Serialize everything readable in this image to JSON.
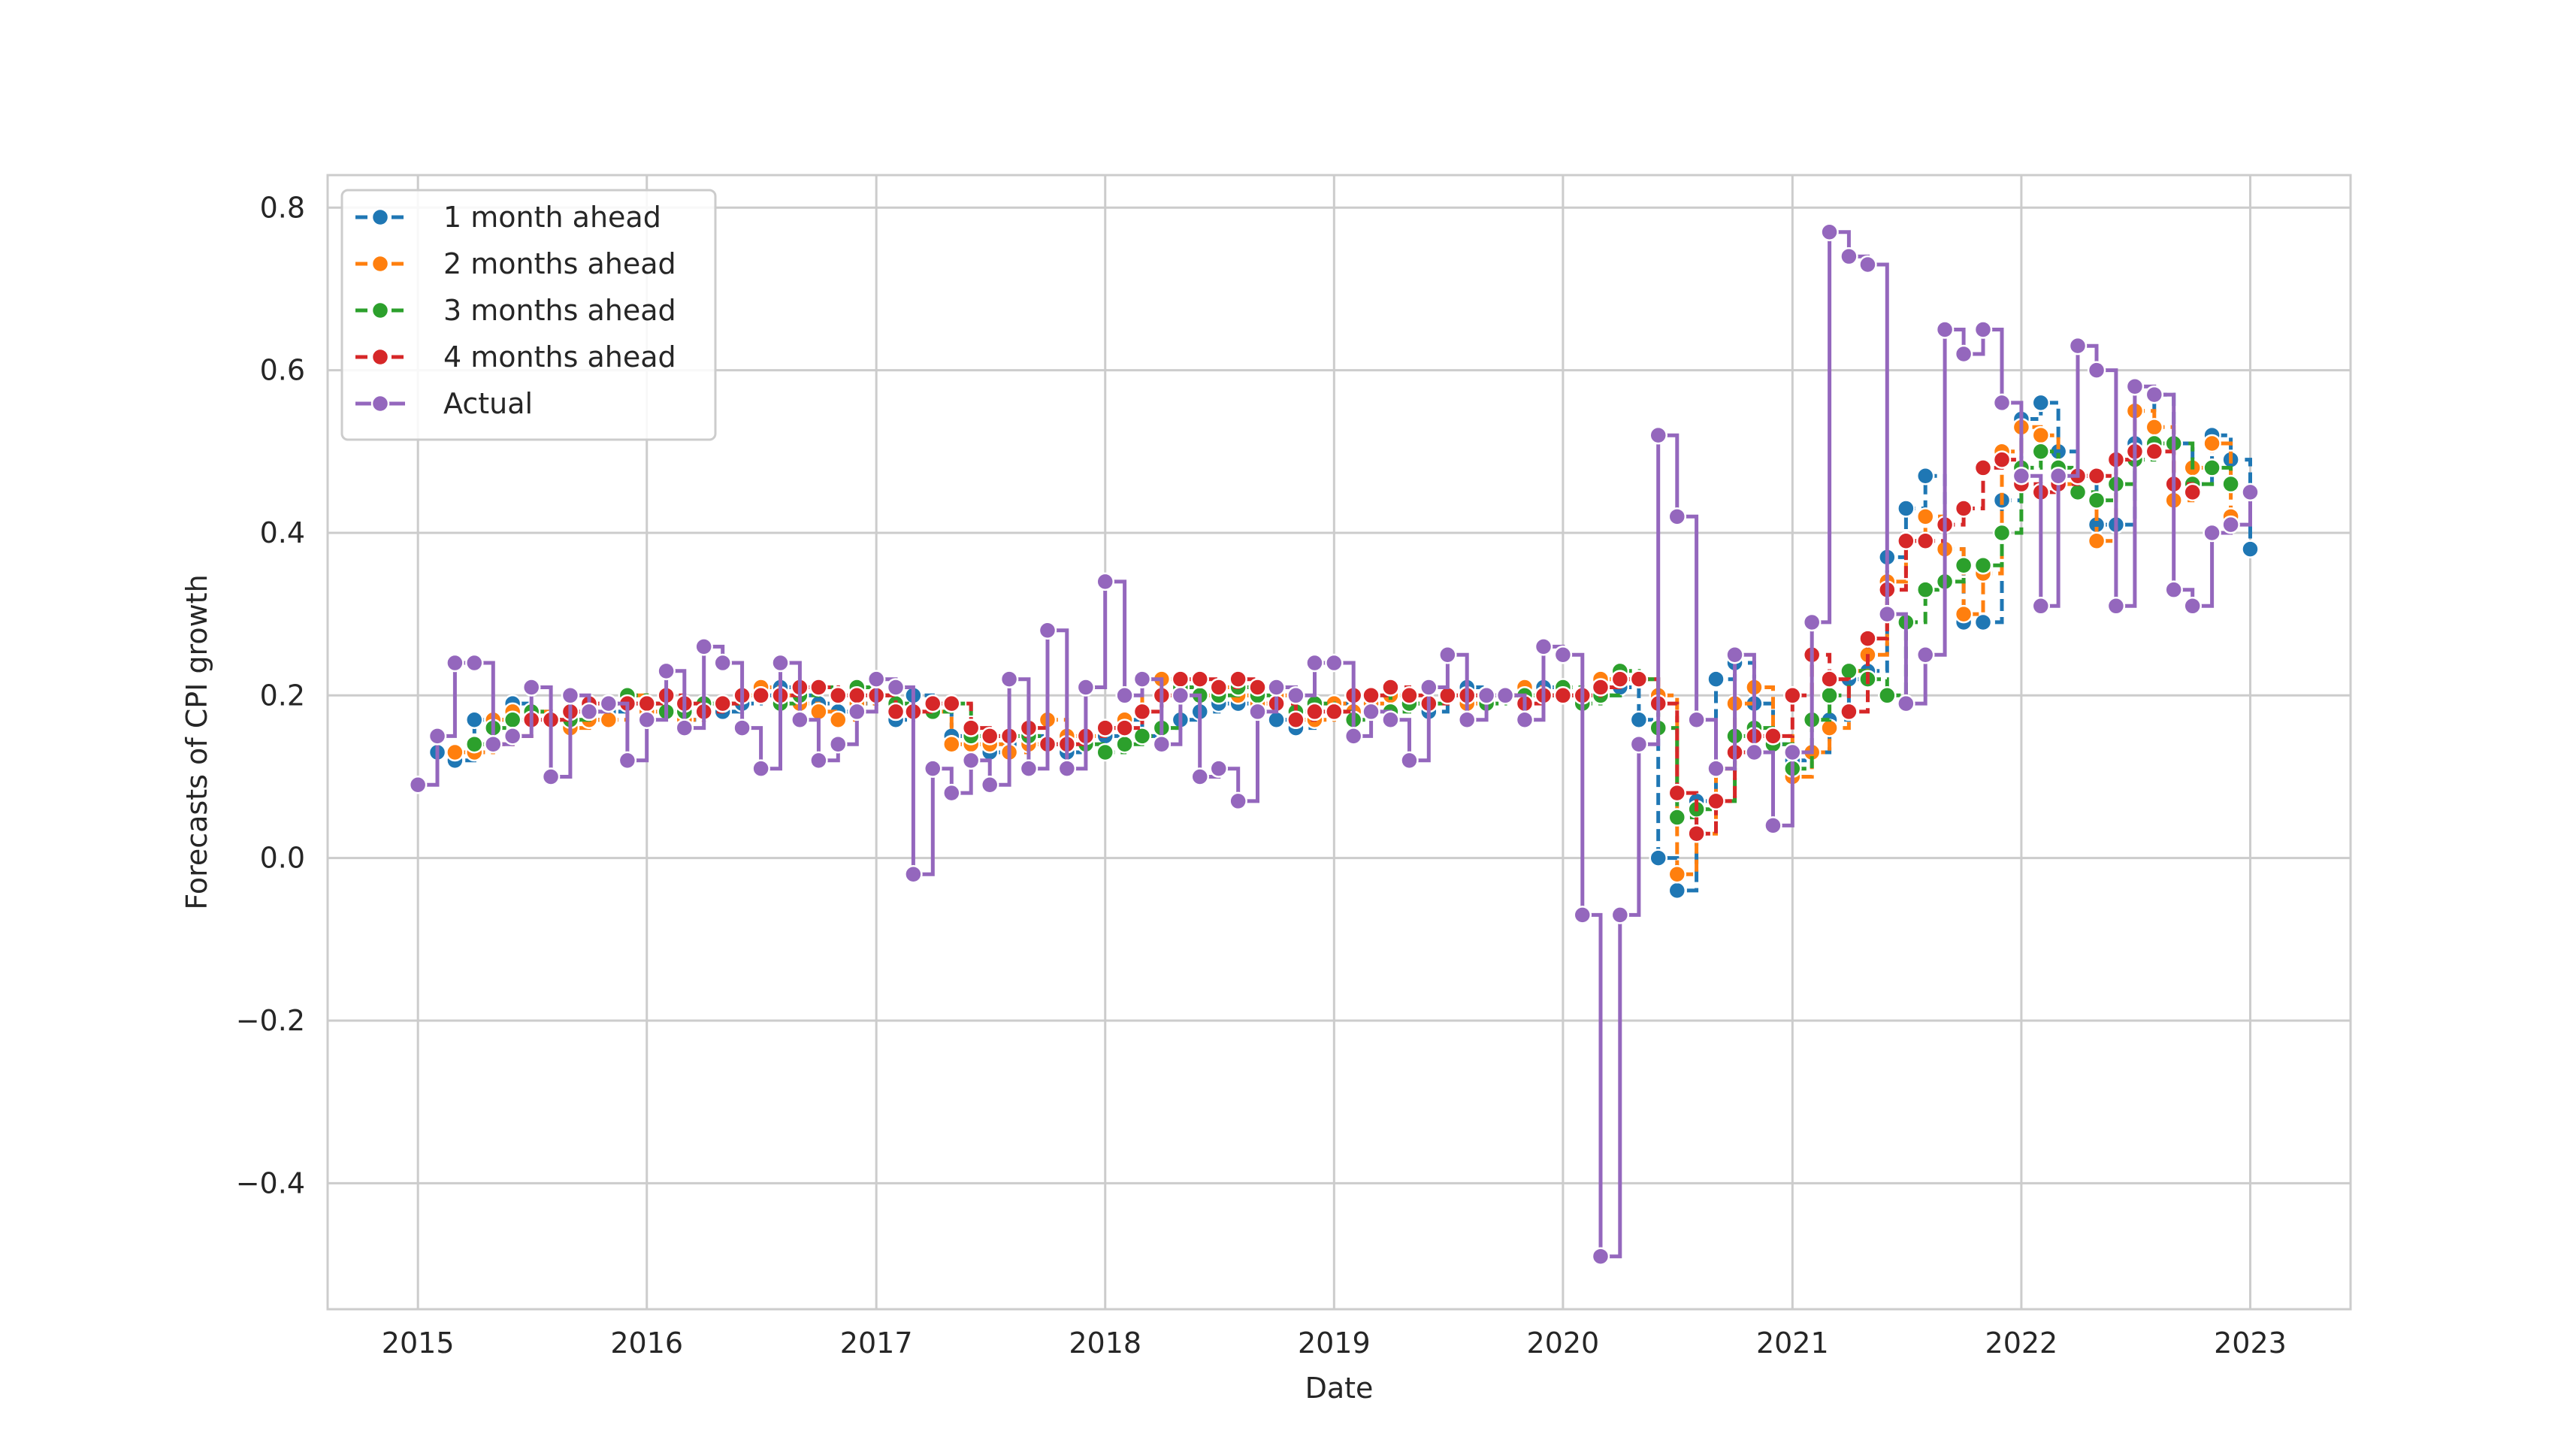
{
  "chart_data": {
    "type": "line",
    "step": "post",
    "markers": true,
    "xlabel": "Date",
    "ylabel": "Forecasts of CPI growth",
    "xlim": [
      "2014-08-10",
      "2023-06-10"
    ],
    "ylim": [
      -0.555,
      0.84
    ],
    "xticks": [
      2015,
      2016,
      2017,
      2018,
      2019,
      2020,
      2021,
      2022,
      2023
    ],
    "xtick_labels": [
      "2015",
      "2016",
      "2017",
      "2018",
      "2019",
      "2020",
      "2021",
      "2022",
      "2023"
    ],
    "yticks": [
      -0.4,
      -0.2,
      0.0,
      0.2,
      0.4,
      0.6,
      0.8
    ],
    "ytick_labels": [
      "−0.4",
      "−0.2",
      "0.0",
      "0.2",
      "0.4",
      "0.6",
      "0.8"
    ],
    "grid": true,
    "legend_position": "top-left",
    "x": [
      "2015-01",
      "2015-02",
      "2015-03",
      "2015-04",
      "2015-05",
      "2015-06",
      "2015-07",
      "2015-08",
      "2015-09",
      "2015-10",
      "2015-11",
      "2015-12",
      "2016-01",
      "2016-02",
      "2016-03",
      "2016-04",
      "2016-05",
      "2016-06",
      "2016-07",
      "2016-08",
      "2016-09",
      "2016-10",
      "2016-11",
      "2016-12",
      "2017-01",
      "2017-02",
      "2017-03",
      "2017-04",
      "2017-05",
      "2017-06",
      "2017-07",
      "2017-08",
      "2017-09",
      "2017-10",
      "2017-11",
      "2017-12",
      "2018-01",
      "2018-02",
      "2018-03",
      "2018-04",
      "2018-05",
      "2018-06",
      "2018-07",
      "2018-08",
      "2018-09",
      "2018-10",
      "2018-11",
      "2018-12",
      "2019-01",
      "2019-02",
      "2019-03",
      "2019-04",
      "2019-05",
      "2019-06",
      "2019-07",
      "2019-08",
      "2019-09",
      "2019-10",
      "2019-11",
      "2019-12",
      "2020-01",
      "2020-02",
      "2020-03",
      "2020-04",
      "2020-05",
      "2020-06",
      "2020-07",
      "2020-08",
      "2020-09",
      "2020-10",
      "2020-11",
      "2020-12",
      "2021-01",
      "2021-02",
      "2021-03",
      "2021-04",
      "2021-05",
      "2021-06",
      "2021-07",
      "2021-08",
      "2021-09",
      "2021-10",
      "2021-11",
      "2021-12",
      "2022-01",
      "2022-02",
      "2022-03",
      "2022-04",
      "2022-05",
      "2022-06",
      "2022-07",
      "2022-08",
      "2022-09",
      "2022-10",
      "2022-11",
      "2022-12",
      "2023-01",
      "2023-02"
    ],
    "series": [
      {
        "name": "1 month ahead",
        "color": "#1f77b4",
        "values": [
          null,
          0.13,
          0.12,
          0.17,
          0.17,
          0.19,
          0.18,
          0.17,
          0.17,
          0.17,
          0.18,
          0.19,
          0.19,
          0.18,
          0.17,
          0.19,
          0.18,
          0.19,
          0.2,
          0.21,
          0.2,
          0.19,
          0.18,
          0.19,
          0.2,
          0.17,
          0.2,
          0.18,
          0.15,
          0.14,
          0.13,
          0.14,
          0.15,
          0.14,
          0.13,
          0.14,
          0.15,
          0.17,
          0.15,
          0.16,
          0.17,
          0.18,
          0.19,
          0.19,
          0.2,
          0.17,
          0.16,
          0.18,
          0.19,
          0.18,
          0.2,
          0.2,
          0.19,
          0.18,
          0.2,
          0.21,
          0.2,
          0.2,
          0.2,
          0.21,
          0.2,
          0.2,
          0.2,
          0.21,
          0.17,
          0.0,
          -0.04,
          0.07,
          0.22,
          0.24,
          0.19,
          0.14,
          0.12,
          0.13,
          0.17,
          0.22,
          0.23,
          0.37,
          0.43,
          0.47,
          0.38,
          0.29,
          0.29,
          0.44,
          0.54,
          0.56,
          0.5,
          0.47,
          0.41,
          0.41,
          0.51,
          0.57,
          0.51,
          0.46,
          0.52,
          0.49,
          0.38,
          null
        ]
      },
      {
        "name": "2 months ahead",
        "color": "#ff7f0e",
        "values": [
          null,
          null,
          0.13,
          0.13,
          0.17,
          0.18,
          0.18,
          0.17,
          0.16,
          0.17,
          0.17,
          0.2,
          0.18,
          0.18,
          0.17,
          0.19,
          0.19,
          0.2,
          0.21,
          0.2,
          0.19,
          0.18,
          0.17,
          0.19,
          0.2,
          0.18,
          0.18,
          0.18,
          0.14,
          0.14,
          0.14,
          0.13,
          0.14,
          0.17,
          0.15,
          0.15,
          0.16,
          0.17,
          0.22,
          0.22,
          0.2,
          0.2,
          0.21,
          0.2,
          0.19,
          0.2,
          0.17,
          0.17,
          0.19,
          0.18,
          0.19,
          0.2,
          0.19,
          0.19,
          0.2,
          0.19,
          0.2,
          0.2,
          0.21,
          0.2,
          0.2,
          0.2,
          0.22,
          0.22,
          0.22,
          0.2,
          -0.02,
          0.03,
          0.11,
          0.19,
          0.21,
          0.15,
          0.1,
          0.13,
          0.16,
          0.23,
          0.25,
          0.34,
          0.39,
          0.42,
          0.38,
          0.3,
          0.35,
          0.5,
          0.53,
          0.52,
          0.46,
          0.47,
          0.39,
          0.49,
          0.55,
          0.53,
          0.44,
          0.48,
          0.51,
          0.42,
          null,
          null
        ]
      },
      {
        "name": "3 months ahead",
        "color": "#2ca02c",
        "values": [
          null,
          null,
          null,
          0.14,
          0.16,
          0.17,
          0.18,
          0.17,
          0.17,
          0.18,
          0.19,
          0.2,
          0.19,
          0.18,
          0.18,
          0.19,
          0.19,
          0.2,
          0.2,
          0.19,
          0.2,
          0.21,
          0.2,
          0.21,
          0.2,
          0.19,
          0.18,
          0.18,
          0.19,
          0.15,
          0.15,
          0.15,
          0.15,
          0.14,
          0.14,
          0.14,
          0.13,
          0.14,
          0.15,
          0.16,
          0.21,
          0.2,
          0.2,
          0.21,
          0.2,
          0.21,
          0.18,
          0.19,
          0.18,
          0.17,
          0.2,
          0.18,
          0.19,
          0.19,
          0.2,
          0.2,
          0.19,
          0.2,
          0.2,
          0.2,
          0.21,
          0.19,
          0.2,
          0.23,
          0.22,
          0.16,
          0.05,
          0.06,
          0.07,
          0.15,
          0.16,
          0.14,
          0.11,
          0.17,
          0.2,
          0.23,
          0.22,
          0.2,
          0.29,
          0.33,
          0.34,
          0.36,
          0.36,
          0.4,
          0.48,
          0.5,
          0.48,
          0.45,
          0.44,
          0.46,
          0.49,
          0.51,
          0.51,
          0.46,
          0.48,
          0.46,
          null,
          null
        ]
      },
      {
        "name": "4 months ahead",
        "color": "#d62728",
        "values": [
          null,
          null,
          null,
          null,
          0.14,
          0.15,
          0.17,
          0.17,
          0.18,
          0.19,
          0.19,
          0.19,
          0.19,
          0.2,
          0.19,
          0.18,
          0.19,
          0.2,
          0.2,
          0.2,
          0.21,
          0.21,
          0.2,
          0.2,
          0.2,
          0.18,
          0.18,
          0.19,
          0.19,
          0.16,
          0.15,
          0.15,
          0.16,
          0.14,
          0.14,
          0.15,
          0.16,
          0.16,
          0.18,
          0.2,
          0.22,
          0.22,
          0.21,
          0.22,
          0.21,
          0.19,
          0.17,
          0.18,
          0.18,
          0.2,
          0.2,
          0.21,
          0.2,
          0.19,
          0.2,
          0.2,
          0.2,
          0.2,
          0.19,
          0.2,
          0.2,
          0.2,
          0.21,
          0.22,
          0.22,
          0.19,
          0.08,
          0.03,
          0.07,
          0.13,
          0.15,
          0.15,
          0.2,
          0.25,
          0.22,
          0.18,
          0.27,
          0.33,
          0.39,
          0.39,
          0.41,
          0.43,
          0.48,
          0.49,
          0.46,
          0.45,
          0.46,
          0.47,
          0.47,
          0.49,
          0.5,
          0.5,
          0.46,
          0.45,
          null,
          null,
          null,
          null
        ]
      },
      {
        "name": "Actual",
        "color": "#9467bd",
        "values": [
          0.09,
          0.15,
          0.24,
          0.24,
          0.14,
          0.15,
          0.21,
          0.1,
          0.2,
          0.18,
          0.19,
          0.12,
          0.17,
          0.23,
          0.16,
          0.26,
          0.24,
          0.16,
          0.11,
          0.24,
          0.17,
          0.12,
          0.14,
          0.18,
          0.22,
          0.21,
          -0.02,
          0.11,
          0.08,
          0.12,
          0.09,
          0.22,
          0.11,
          0.28,
          0.11,
          0.21,
          0.34,
          0.2,
          0.22,
          0.14,
          0.2,
          0.1,
          0.11,
          0.07,
          0.18,
          0.21,
          0.2,
          0.24,
          0.24,
          0.15,
          0.18,
          0.17,
          0.12,
          0.21,
          0.25,
          0.17,
          0.2,
          0.2,
          0.17,
          0.26,
          0.25,
          -0.07,
          -0.49,
          -0.07,
          0.14,
          0.52,
          0.42,
          0.17,
          0.11,
          0.25,
          0.13,
          0.04,
          0.13,
          0.29,
          0.77,
          0.74,
          0.73,
          0.3,
          0.19,
          0.25,
          0.65,
          0.62,
          0.65,
          0.56,
          0.47,
          0.31,
          0.47,
          0.63,
          0.6,
          0.31,
          0.58,
          0.57,
          0.33,
          0.31,
          0.4,
          0.41,
          0.45,
          null
        ]
      }
    ]
  }
}
